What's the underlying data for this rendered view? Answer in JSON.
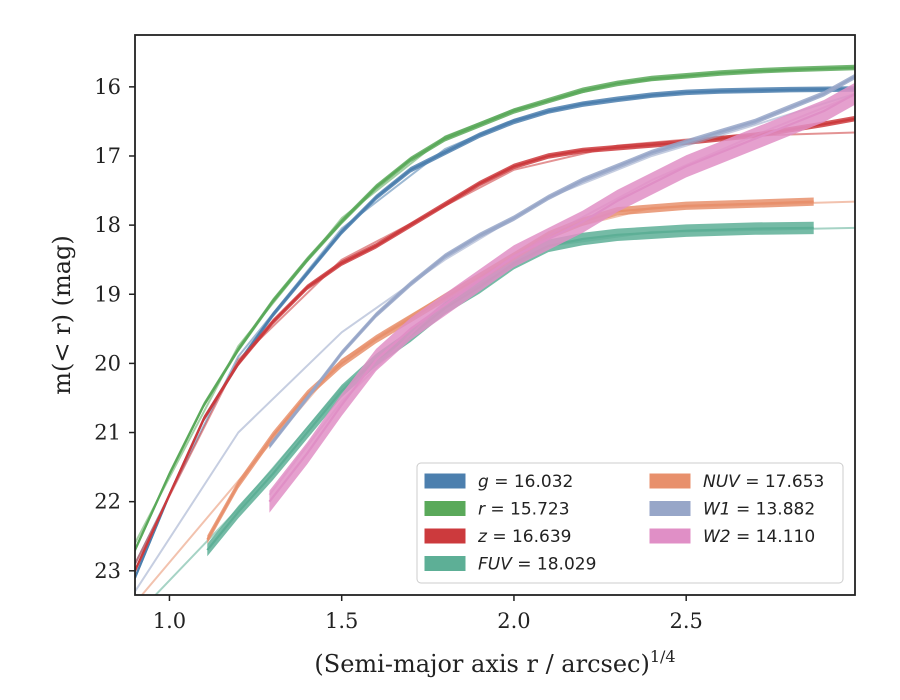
{
  "chart_data": {
    "type": "line",
    "xlabel": "(Semi-major axis r / arcsec)",
    "xlabel_exponent": "1/4",
    "ylabel": "m(< r) (mag)",
    "xlim": [
      0.9,
      2.99
    ],
    "ylim": [
      23.35,
      15.25
    ],
    "y_inverted": true,
    "xticks": [
      "1.0",
      "1.5",
      "2.0",
      "2.5"
    ],
    "xtick_values": [
      1.0,
      1.5,
      2.0,
      2.5
    ],
    "yticks": [
      "16",
      "17",
      "18",
      "19",
      "20",
      "21",
      "22",
      "23"
    ],
    "ytick_values": [
      16,
      17,
      18,
      19,
      20,
      21,
      22,
      23
    ],
    "grid": false,
    "legend_position": "lower-right",
    "series": [
      {
        "name": "g = 16.032",
        "name_symbol": "g",
        "name_value": "16.032",
        "color": "#4c7fae",
        "band_width": 0.08,
        "data": [
          [
            0.9,
            23.1
          ],
          [
            1.0,
            21.9
          ],
          [
            1.1,
            20.8
          ],
          [
            1.2,
            20.0
          ],
          [
            1.3,
            19.3
          ],
          [
            1.4,
            18.7
          ],
          [
            1.5,
            18.1
          ],
          [
            1.6,
            17.6
          ],
          [
            1.7,
            17.2
          ],
          [
            1.8,
            16.95
          ],
          [
            1.9,
            16.7
          ],
          [
            2.0,
            16.5
          ],
          [
            2.1,
            16.35
          ],
          [
            2.2,
            16.25
          ],
          [
            2.3,
            16.18
          ],
          [
            2.4,
            16.12
          ],
          [
            2.5,
            16.08
          ],
          [
            2.6,
            16.06
          ],
          [
            2.7,
            16.05
          ],
          [
            2.8,
            16.04
          ],
          [
            2.99,
            16.03
          ]
        ],
        "model": [
          [
            0.9,
            22.9
          ],
          [
            1.2,
            19.9
          ],
          [
            1.5,
            18.05
          ],
          [
            1.8,
            16.9
          ],
          [
            2.0,
            16.48
          ],
          [
            2.2,
            16.24
          ],
          [
            2.5,
            16.08
          ],
          [
            2.99,
            16.03
          ]
        ]
      },
      {
        "name": "r = 15.723",
        "name_symbol": "r",
        "name_value": "15.723",
        "color": "#5aa95a",
        "band_width": 0.08,
        "data": [
          [
            0.9,
            22.7
          ],
          [
            1.0,
            21.6
          ],
          [
            1.1,
            20.6
          ],
          [
            1.2,
            19.8
          ],
          [
            1.3,
            19.1
          ],
          [
            1.4,
            18.5
          ],
          [
            1.5,
            17.95
          ],
          [
            1.6,
            17.45
          ],
          [
            1.7,
            17.05
          ],
          [
            1.8,
            16.75
          ],
          [
            1.9,
            16.55
          ],
          [
            2.0,
            16.35
          ],
          [
            2.1,
            16.2
          ],
          [
            2.2,
            16.05
          ],
          [
            2.3,
            15.95
          ],
          [
            2.4,
            15.88
          ],
          [
            2.5,
            15.84
          ],
          [
            2.6,
            15.8
          ],
          [
            2.7,
            15.77
          ],
          [
            2.8,
            15.75
          ],
          [
            2.99,
            15.72
          ]
        ],
        "model": [
          [
            0.9,
            22.6
          ],
          [
            1.2,
            19.75
          ],
          [
            1.5,
            17.9
          ],
          [
            1.8,
            16.72
          ],
          [
            2.0,
            16.33
          ],
          [
            2.3,
            15.95
          ],
          [
            2.6,
            15.8
          ],
          [
            2.99,
            15.72
          ]
        ]
      },
      {
        "name": "z = 16.639",
        "name_symbol": "z",
        "name_value": "16.639",
        "color": "#cc3a3d",
        "band_width": 0.08,
        "data": [
          [
            0.9,
            23.0
          ],
          [
            1.0,
            21.9
          ],
          [
            1.1,
            20.8
          ],
          [
            1.2,
            20.0
          ],
          [
            1.3,
            19.4
          ],
          [
            1.4,
            18.9
          ],
          [
            1.5,
            18.55
          ],
          [
            1.6,
            18.3
          ],
          [
            1.7,
            18.0
          ],
          [
            1.8,
            17.7
          ],
          [
            1.9,
            17.4
          ],
          [
            2.0,
            17.15
          ],
          [
            2.1,
            17.0
          ],
          [
            2.2,
            16.92
          ],
          [
            2.3,
            16.88
          ],
          [
            2.4,
            16.84
          ],
          [
            2.5,
            16.8
          ],
          [
            2.6,
            16.75
          ],
          [
            2.7,
            16.7
          ],
          [
            2.8,
            16.62
          ],
          [
            2.9,
            16.54
          ],
          [
            2.99,
            16.46
          ]
        ],
        "model": [
          [
            0.9,
            22.9
          ],
          [
            1.2,
            19.95
          ],
          [
            1.5,
            18.5
          ],
          [
            1.8,
            17.72
          ],
          [
            2.0,
            17.2
          ],
          [
            2.3,
            16.85
          ],
          [
            2.6,
            16.72
          ],
          [
            2.99,
            16.66
          ]
        ]
      },
      {
        "name": "FUV = 18.029",
        "name_symbol": "FUV",
        "name_value": "18.029",
        "color": "#5daf96",
        "band_width": 0.18,
        "data": [
          [
            1.11,
            22.7
          ],
          [
            1.2,
            22.15
          ],
          [
            1.3,
            21.6
          ],
          [
            1.4,
            21.0
          ],
          [
            1.5,
            20.4
          ],
          [
            1.6,
            19.95
          ],
          [
            1.7,
            19.6
          ],
          [
            1.8,
            19.2
          ],
          [
            1.9,
            18.9
          ],
          [
            2.0,
            18.55
          ],
          [
            2.1,
            18.3
          ],
          [
            2.2,
            18.2
          ],
          [
            2.3,
            18.14
          ],
          [
            2.5,
            18.08
          ],
          [
            2.7,
            18.05
          ],
          [
            2.87,
            18.04
          ]
        ],
        "model": [
          [
            0.95,
            23.4
          ],
          [
            1.2,
            22.1
          ],
          [
            1.5,
            20.35
          ],
          [
            1.8,
            19.15
          ],
          [
            2.1,
            18.3
          ],
          [
            2.4,
            18.1
          ],
          [
            2.99,
            18.04
          ]
        ]
      },
      {
        "name": "NUV = 17.653",
        "name_symbol": "NUV",
        "name_value": "17.653",
        "color": "#e8906c",
        "band_width": 0.12,
        "data": [
          [
            1.11,
            22.55
          ],
          [
            1.2,
            21.75
          ],
          [
            1.3,
            21.05
          ],
          [
            1.4,
            20.45
          ],
          [
            1.5,
            20.0
          ],
          [
            1.6,
            19.65
          ],
          [
            1.7,
            19.35
          ],
          [
            1.8,
            19.05
          ],
          [
            1.9,
            18.75
          ],
          [
            2.0,
            18.45
          ],
          [
            2.1,
            18.15
          ],
          [
            2.2,
            17.95
          ],
          [
            2.3,
            17.8
          ],
          [
            2.5,
            17.72
          ],
          [
            2.7,
            17.69
          ],
          [
            2.87,
            17.66
          ]
        ],
        "model": [
          [
            0.92,
            23.35
          ],
          [
            1.2,
            21.7
          ],
          [
            1.5,
            19.95
          ],
          [
            1.8,
            19.0
          ],
          [
            2.1,
            18.12
          ],
          [
            2.4,
            17.75
          ],
          [
            2.99,
            17.66
          ]
        ]
      },
      {
        "name": "W1 = 13.882",
        "name_symbol": "W1",
        "name_value": "13.882",
        "color": "#97a6c8",
        "band_width": 0.08,
        "data": [
          [
            1.29,
            21.2
          ],
          [
            1.4,
            20.5
          ],
          [
            1.5,
            19.85
          ],
          [
            1.6,
            19.3
          ],
          [
            1.7,
            18.85
          ],
          [
            1.8,
            18.45
          ],
          [
            1.9,
            18.15
          ],
          [
            2.0,
            17.9
          ],
          [
            2.1,
            17.6
          ],
          [
            2.2,
            17.35
          ],
          [
            2.3,
            17.15
          ],
          [
            2.4,
            16.95
          ],
          [
            2.5,
            16.8
          ],
          [
            2.6,
            16.65
          ],
          [
            2.7,
            16.5
          ],
          [
            2.8,
            16.3
          ],
          [
            2.9,
            16.1
          ],
          [
            2.99,
            15.85
          ]
        ],
        "model": [
          [
            0.9,
            23.3
          ],
          [
            1.2,
            21.0
          ],
          [
            1.5,
            19.55
          ],
          [
            1.8,
            18.5
          ],
          [
            2.1,
            17.6
          ],
          [
            2.4,
            17.0
          ],
          [
            2.7,
            16.55
          ],
          [
            2.99,
            16.1
          ]
        ]
      },
      {
        "name": "W2 = 14.110",
        "name_symbol": "W2",
        "name_value": "14.110",
        "color": "#e08fc6",
        "band_width": 0.32,
        "data": [
          [
            1.29,
            22.0
          ],
          [
            1.4,
            21.3
          ],
          [
            1.5,
            20.6
          ],
          [
            1.6,
            19.95
          ],
          [
            1.7,
            19.5
          ],
          [
            1.8,
            19.15
          ],
          [
            1.9,
            18.8
          ],
          [
            2.0,
            18.45
          ],
          [
            2.1,
            18.2
          ],
          [
            2.2,
            17.95
          ],
          [
            2.3,
            17.65
          ],
          [
            2.4,
            17.4
          ],
          [
            2.5,
            17.15
          ],
          [
            2.6,
            16.95
          ],
          [
            2.7,
            16.75
          ],
          [
            2.8,
            16.55
          ],
          [
            2.9,
            16.35
          ],
          [
            2.99,
            16.1
          ]
        ],
        "model": [
          [
            1.29,
            21.9
          ],
          [
            1.5,
            20.55
          ],
          [
            1.8,
            19.1
          ],
          [
            2.1,
            18.15
          ],
          [
            2.4,
            17.35
          ],
          [
            2.7,
            16.7
          ],
          [
            2.99,
            16.12
          ]
        ]
      }
    ]
  }
}
